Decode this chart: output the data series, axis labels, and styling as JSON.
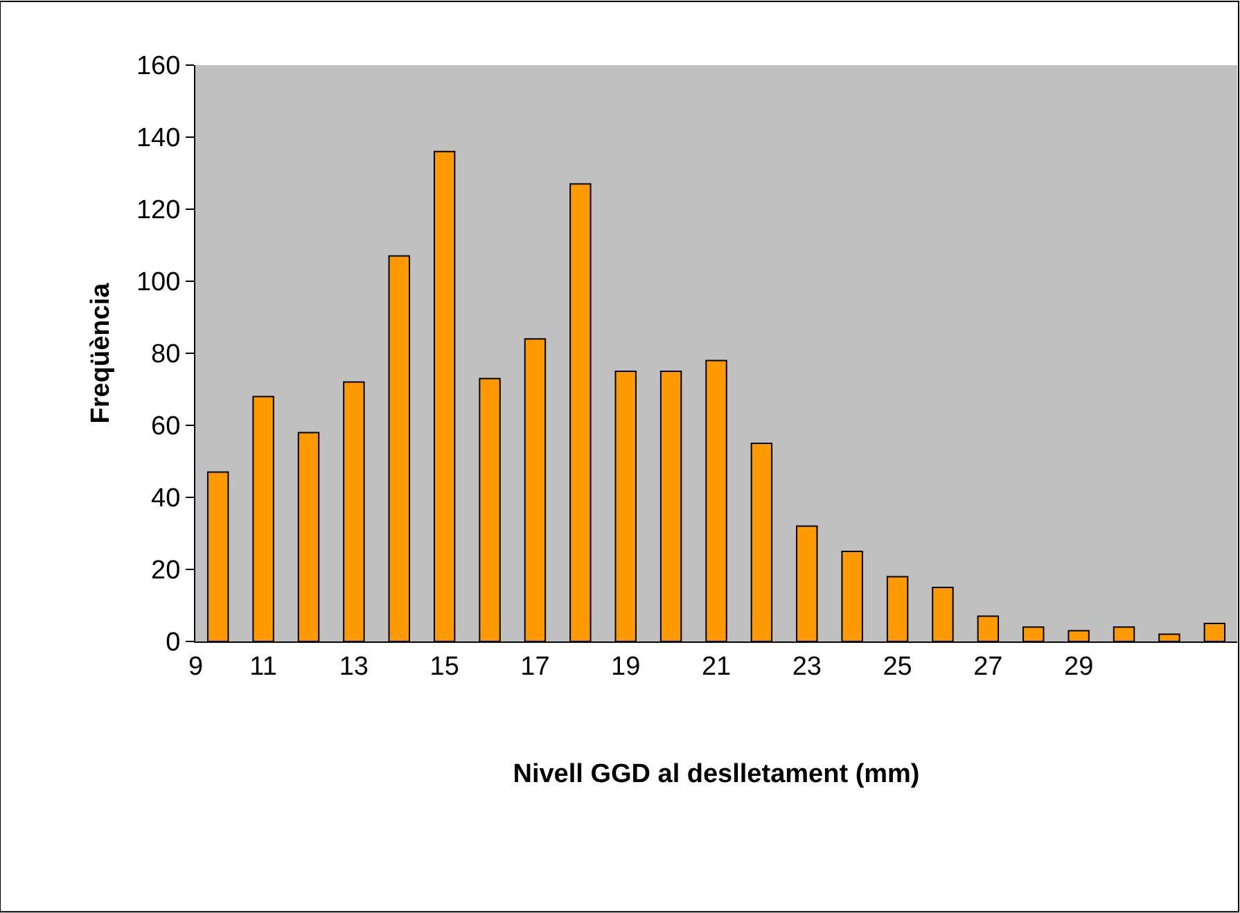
{
  "chart_data": {
    "type": "bar",
    "xlabel": "Nivell GGD al deslletament (mm)",
    "ylabel": "Freqüència",
    "categories": [
      null,
      "11",
      null,
      "13",
      null,
      "15",
      null,
      "17",
      null,
      "19",
      null,
      "21",
      null,
      "23",
      null,
      "25",
      null,
      "27",
      null,
      "29",
      null,
      null,
      null
    ],
    "series": [
      {
        "color": "#ff9900",
        "values": [
          47,
          68,
          58,
          72,
          107,
          136,
          73,
          84,
          127,
          75,
          75,
          78,
          55,
          32,
          25,
          18,
          15,
          7,
          4,
          3,
          4,
          2,
          5
        ]
      }
    ],
    "ylim": [
      0,
      160
    ],
    "yticks": [
      0,
      20,
      40,
      60,
      80,
      100,
      120,
      140,
      160
    ],
    "grid": false,
    "annotations": [
      "9"
    ]
  }
}
